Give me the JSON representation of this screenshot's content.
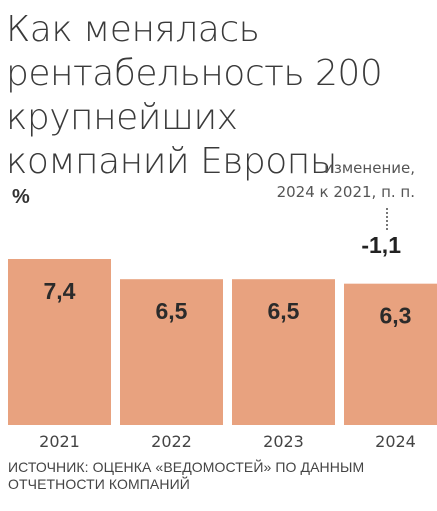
{
  "title": "Как менялась рентабельность 200 крупнейших компаний Европы",
  "unit": "%",
  "change_note": [
    "изменение,",
    "2024 к 2021, п. п."
  ],
  "change_value": "-1,1",
  "source": "Источник: оценка «Ведомостей» по данным отчетности компаний",
  "bar_color": "#E8A27F",
  "chart_data": {
    "type": "bar",
    "categories": [
      "2021",
      "2022",
      "2023",
      "2024"
    ],
    "values": [
      7.4,
      6.5,
      6.5,
      6.3
    ],
    "value_labels": [
      "7,4",
      "6,5",
      "6,5",
      "6,3"
    ],
    "ylim": [
      0,
      7.4
    ]
  }
}
